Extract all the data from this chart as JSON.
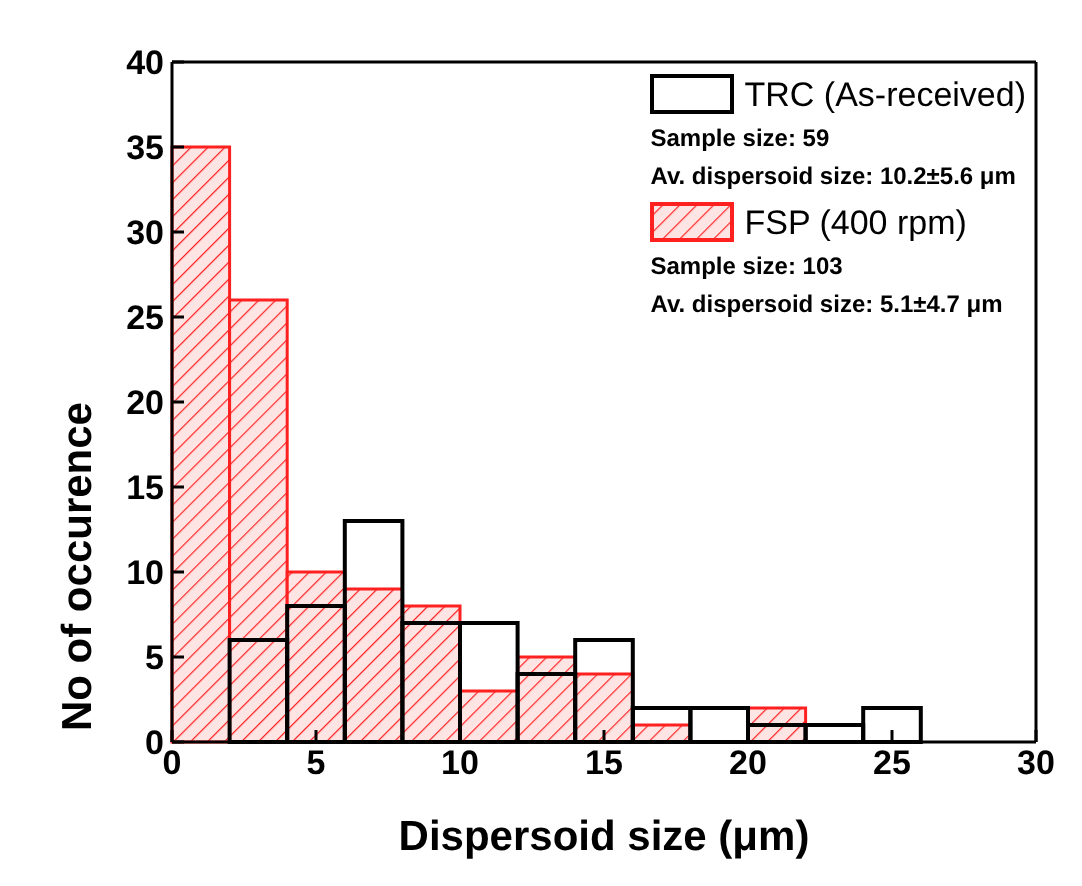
{
  "chart_data": {
    "type": "histogram",
    "xlabel": "Dispersoid size (μm)",
    "ylabel": "No of occurence",
    "bins": [
      0,
      2,
      4,
      6,
      8,
      10,
      12,
      14,
      16,
      18,
      20,
      22,
      24,
      26
    ],
    "series": [
      {
        "name": "TRC (As-received)",
        "color": "#000000",
        "values": [
          0,
          6,
          8,
          13,
          7,
          7,
          4,
          6,
          2,
          2,
          1,
          1,
          2
        ]
      },
      {
        "name": "FSP (400 rpm)",
        "color": "#ff2020",
        "values": [
          35,
          26,
          10,
          9,
          8,
          3,
          5,
          4,
          1,
          0,
          2,
          0,
          0
        ]
      }
    ],
    "xlim": [
      0,
      30
    ],
    "xticks": [
      0,
      5,
      10,
      15,
      20,
      25,
      30
    ],
    "ylim": [
      0,
      40
    ],
    "yticks": [
      0,
      5,
      10,
      15,
      20,
      25,
      30,
      35,
      40
    ],
    "legend": "top right",
    "annotations": [
      "Sample size: 59",
      "Av. dispersoid size: 10.2±5.6 μm",
      "Sample size: 103",
      "Av. dispersoid size: 5.1±4.7 μm"
    ]
  }
}
